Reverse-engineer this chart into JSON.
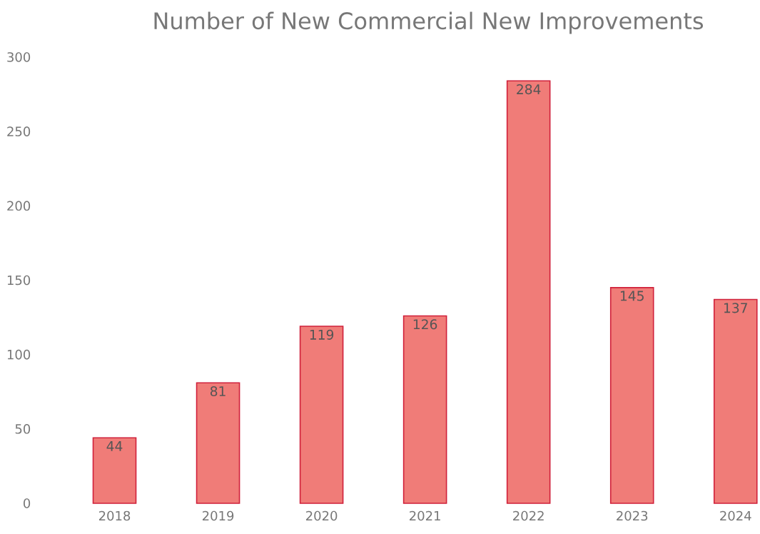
{
  "chart_data": {
    "type": "bar",
    "title": "Number of New Commercial New Improvements",
    "categories": [
      "2018",
      "2019",
      "2020",
      "2021",
      "2022",
      "2023",
      "2024"
    ],
    "values": [
      44,
      81,
      119,
      126,
      284,
      145,
      137
    ],
    "color": "#f07c78",
    "ylim": [
      0,
      300
    ],
    "yticks": [
      0,
      50,
      100,
      150,
      200,
      250,
      300
    ],
    "data_labels": true
  }
}
